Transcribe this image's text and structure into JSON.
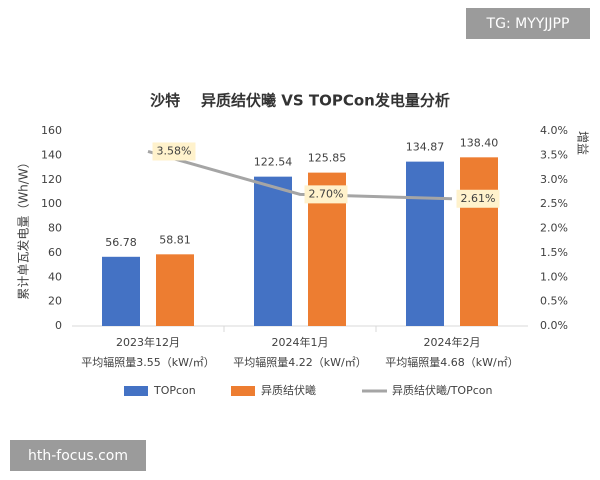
{
  "chart_data": {
    "type": "bar",
    "title": "沙特    异质结伏曦 VS TOPCon发电量分析",
    "watermarks": [
      "TG: MYYJJPP",
      "hth-focus.com"
    ],
    "y_label": "累计单瓦发电量（Wh/W）",
    "y2_label": "增益",
    "categories": [
      "2023年12月",
      "2024年1月",
      "2024年2月"
    ],
    "category_sublabels": [
      "平均辐照量3.55（kW/㎡）",
      "平均辐照量4.22（kW/㎡）",
      "平均辐照量4.68（kW/㎡）"
    ],
    "series": [
      {
        "name": "TOPcon",
        "type": "bar",
        "color": "#4472c4",
        "values": [
          56.78,
          122.54,
          134.87
        ],
        "value_labels": [
          "56.78",
          "122.54",
          "134.87"
        ]
      },
      {
        "name": "异质结伏曦",
        "type": "bar",
        "color": "#ed7d31",
        "values": [
          58.81,
          125.85,
          138.4
        ],
        "value_labels": [
          "58.81",
          "125.85",
          "138.40"
        ]
      },
      {
        "name": "异质结伏曦/TOPcon",
        "type": "line",
        "axis": "y2",
        "color": "#a5a5a5",
        "values": [
          3.58,
          2.7,
          2.61
        ],
        "value_labels": [
          "3.58%",
          "2.70%",
          "2.61%"
        ]
      }
    ],
    "ylim": [
      0,
      160
    ],
    "yticks": [
      0,
      20,
      40,
      60,
      80,
      100,
      120,
      140,
      160
    ],
    "y2lim": [
      0,
      4
    ],
    "y2ticks": [
      {
        "value": 0,
        "label": "0.0%"
      },
      {
        "value": 0.5,
        "label": "0.5%"
      },
      {
        "value": 1,
        "label": "1.0%"
      },
      {
        "value": 1.5,
        "label": "1.5%"
      },
      {
        "value": 2,
        "label": "2.0%"
      },
      {
        "value": 2.5,
        "label": "2.5%"
      },
      {
        "value": 3,
        "label": "3.0%"
      },
      {
        "value": 3.5,
        "label": "3.5%"
      },
      {
        "value": 4,
        "label": "4.0%"
      }
    ],
    "grid": false,
    "legend": "bottom"
  }
}
